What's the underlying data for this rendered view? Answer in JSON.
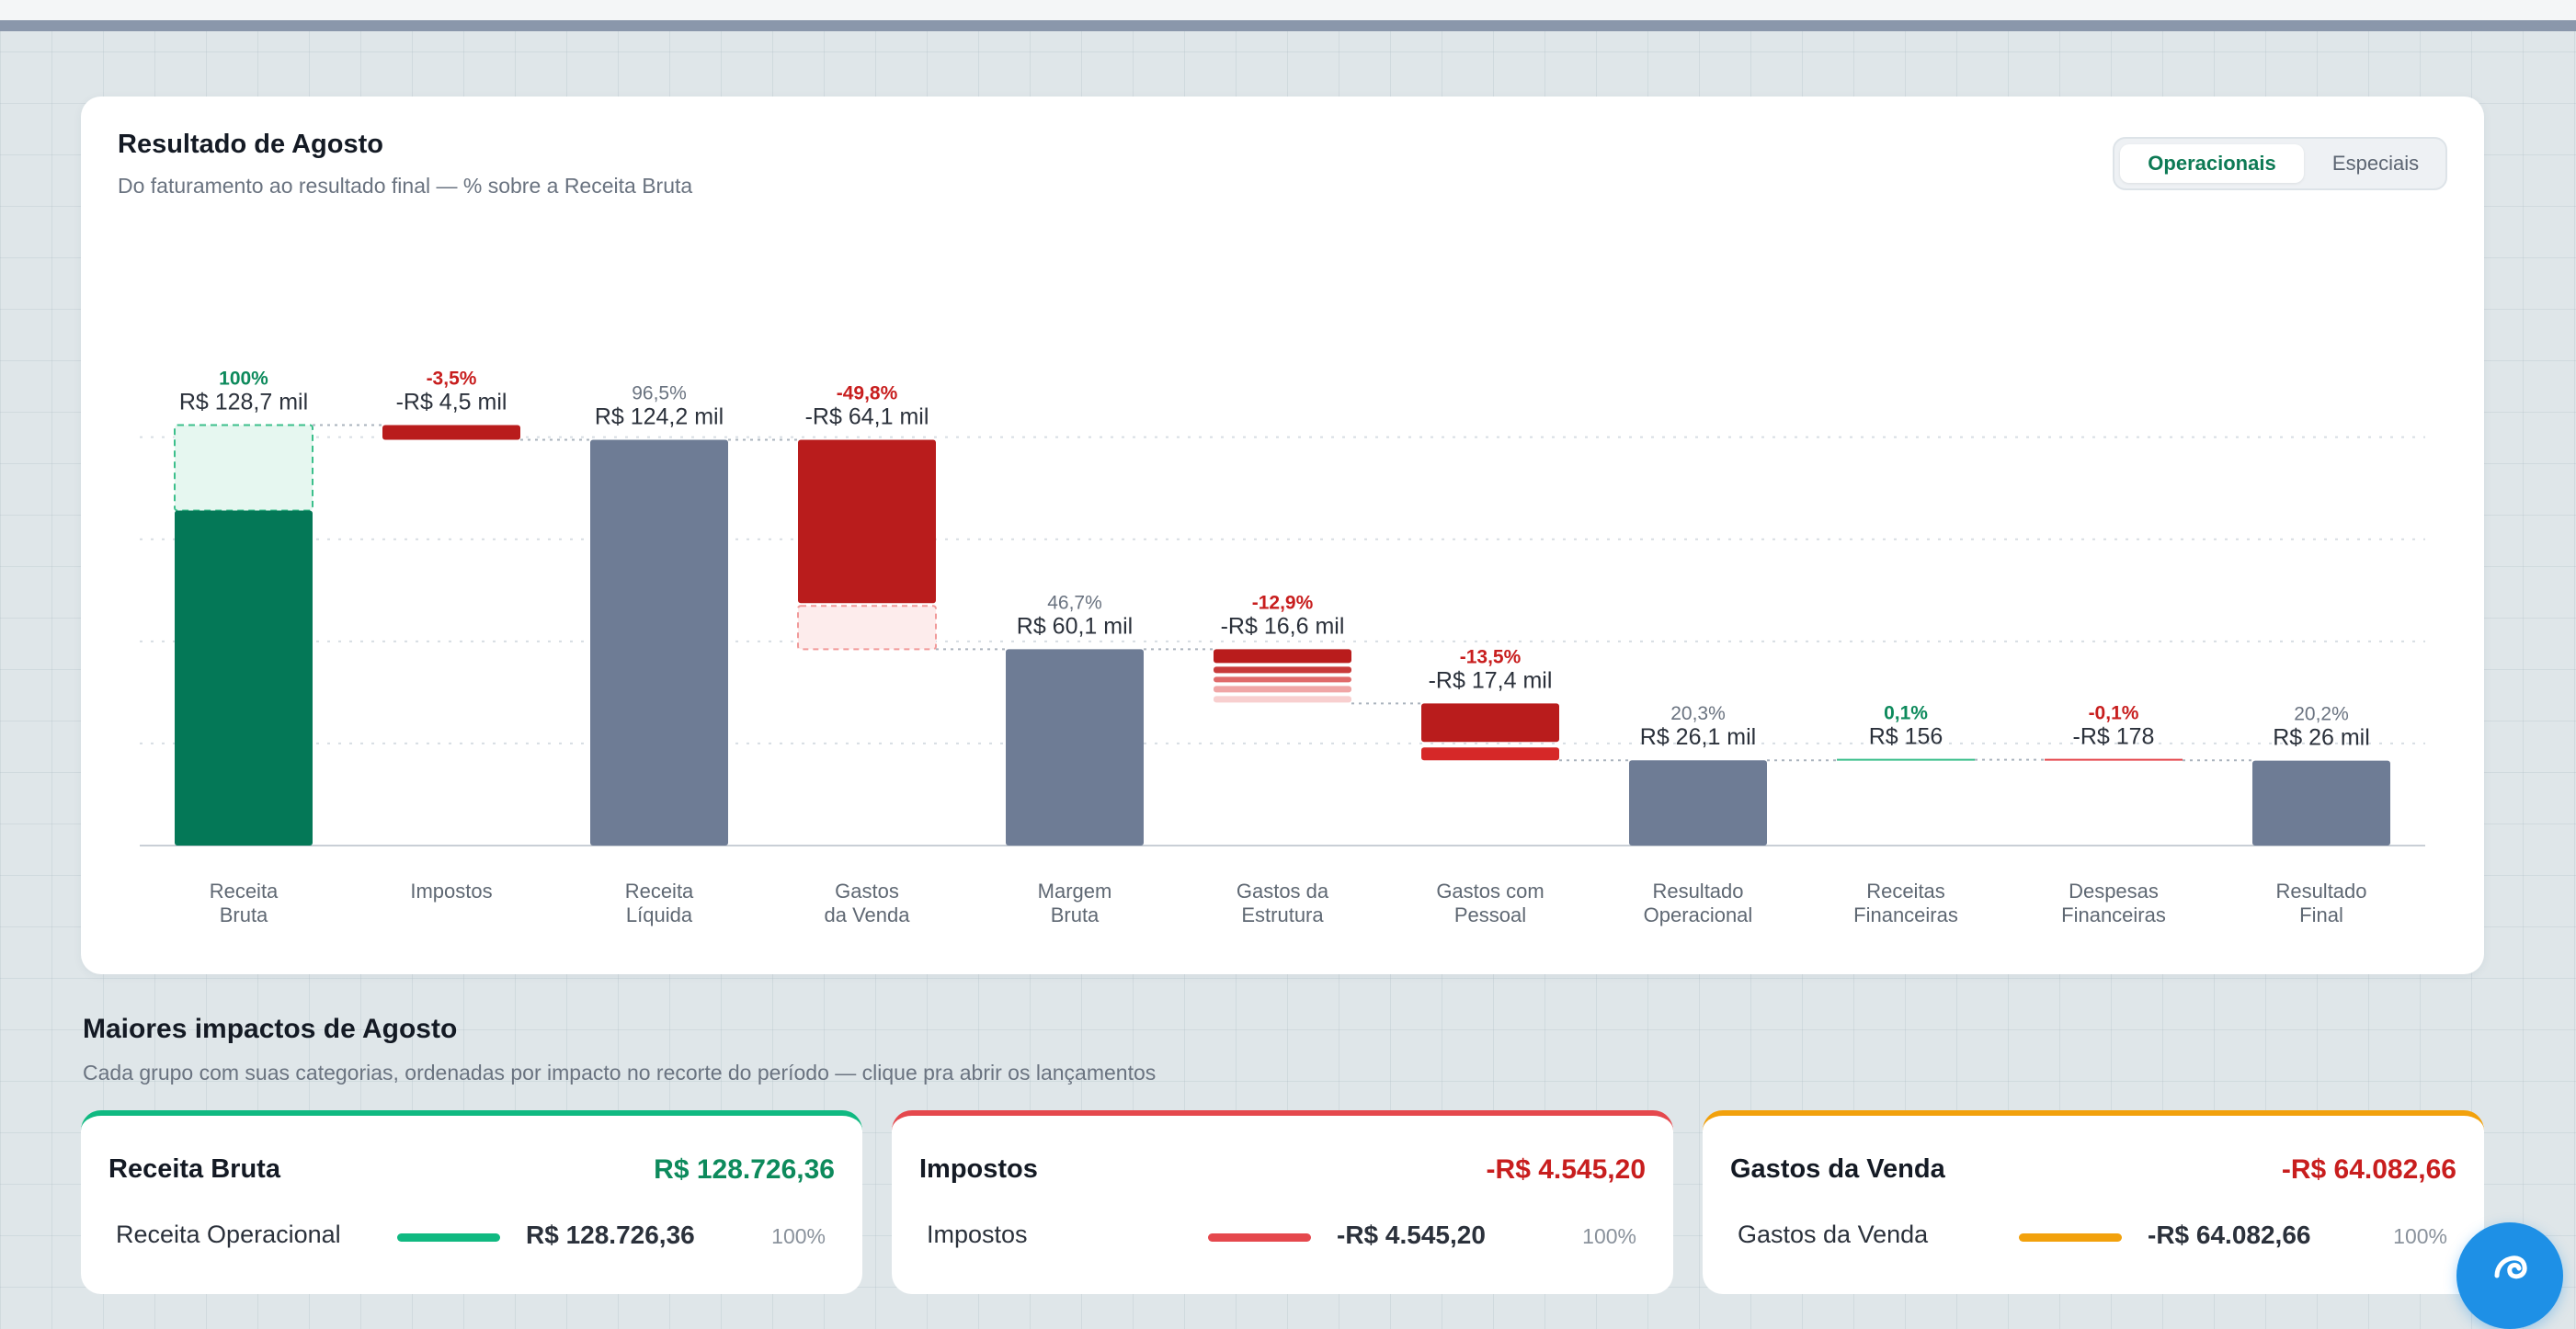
{
  "header": {
    "title": "Resultado de Agosto",
    "subtitle": "Do faturamento ao resultado final — % sobre a Receita Bruta"
  },
  "toggle": {
    "options": [
      "Operacionais",
      "Especiais"
    ],
    "selected": "Operacionais"
  },
  "colors": {
    "positive": "#047857",
    "negative": "#b91c1c",
    "subtotal": "#6e7c95",
    "pct_positive": "#0d8a5c",
    "pct_negative": "#c81e1e",
    "pct_neutral": "#6a7380"
  },
  "chart_data": {
    "type": "waterfall",
    "unit": "R$ mil",
    "categories": [
      "Receita Bruta",
      "Impostos",
      "Receita Líquida",
      "Gastos da Venda",
      "Margem Bruta",
      "Gastos da Estrutura",
      "Gastos com Pessoal",
      "Resultado Operacional",
      "Receitas Financeiras",
      "Despesas Financeiras",
      "Resultado Final"
    ],
    "category_lines": [
      [
        "Receita",
        "Bruta"
      ],
      [
        "Impostos"
      ],
      [
        "Receita",
        "Líquida"
      ],
      [
        "Gastos",
        "da Venda"
      ],
      [
        "Margem",
        "Bruta"
      ],
      [
        "Gastos da",
        "Estrutura"
      ],
      [
        "Gastos com",
        "Pessoal"
      ],
      [
        "Resultado",
        "Operacional"
      ],
      [
        "Receitas",
        "Financeiras"
      ],
      [
        "Despesas",
        "Financeiras"
      ],
      [
        "Resultado",
        "Final"
      ]
    ],
    "kinds": [
      "start",
      "delta",
      "total",
      "delta",
      "total",
      "delta",
      "delta",
      "total",
      "delta",
      "delta",
      "total"
    ],
    "values": [
      128.7,
      -4.5,
      124.2,
      -64.1,
      60.1,
      -16.6,
      -17.4,
      26.1,
      0.156,
      -0.178,
      26.0
    ],
    "value_labels": [
      "R$ 128,7 mil",
      "-R$ 4,5 mil",
      "R$ 124,2 mil",
      "-R$ 64,1 mil",
      "R$ 60,1 mil",
      "-R$ 16,6 mil",
      "-R$ 17,4 mil",
      "R$ 26,1 mil",
      "R$ 156",
      "-R$ 178",
      "R$ 26 mil"
    ],
    "pct_labels": [
      "100%",
      "-3,5%",
      "96,5%",
      "-49,8%",
      "46,7%",
      "-12,9%",
      "-13,5%",
      "20,3%",
      "0,1%",
      "-0,1%",
      "20,2%"
    ],
    "pct_kinds": [
      "positive",
      "negative",
      "neutral",
      "negative",
      "neutral",
      "negative",
      "negative",
      "neutral",
      "positive",
      "negative",
      "neutral"
    ],
    "ylim": [
      -25,
      130
    ],
    "grid": true,
    "legend": "none"
  },
  "impacts": {
    "title": "Maiores impactos de Agosto",
    "subtitle": "Cada grupo com suas categorias, ordenadas por impacto no recorte do período — clique pra abrir os lançamentos",
    "cards": [
      {
        "title": "Receita Bruta",
        "total": "R$ 128.726,36",
        "color": "#10b981",
        "total_color": "#0d8a5c",
        "row": {
          "label": "Receita Operacional",
          "value": "R$ 128.726,36",
          "pct": "100%"
        }
      },
      {
        "title": "Impostos",
        "total": "-R$ 4.545,20",
        "color": "#e5484d",
        "total_color": "#c81e1e",
        "row": {
          "label": "Impostos",
          "value": "-R$ 4.545,20",
          "pct": "100%"
        }
      },
      {
        "title": "Gastos da Venda",
        "total": "-R$ 64.082,66",
        "color": "#f2a10c",
        "total_color": "#c81e1e",
        "row": {
          "label": "Gastos da Venda",
          "value": "-R$ 64.082,66",
          "pct": "100%"
        }
      }
    ]
  }
}
